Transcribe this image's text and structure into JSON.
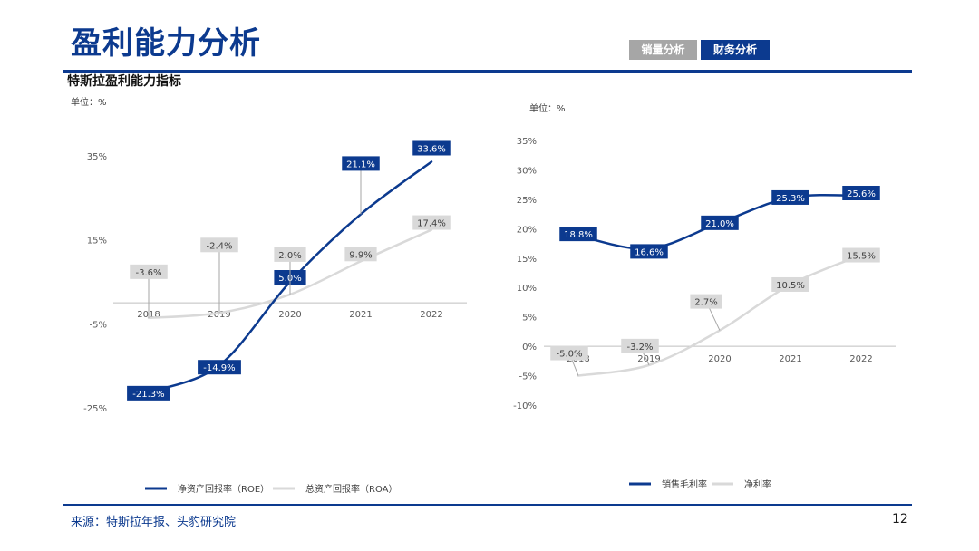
{
  "page": {
    "title": "盈利能力分析",
    "tabs": [
      "销量分析",
      "财务分析"
    ],
    "subtitle": "特斯拉盈利能力指标",
    "source": "来源：特斯拉年报、头豹研究院",
    "page_number": "12"
  },
  "chart_data": [
    {
      "type": "line",
      "unit_label": "单位：%",
      "categories": [
        "2018",
        "2019",
        "2020",
        "2021",
        "2022"
      ],
      "y_ticks": [
        35,
        15,
        -5,
        -25
      ],
      "y_tick_labels": [
        "35%",
        "15%",
        "-5%",
        "-25%"
      ],
      "ylim": [
        -25,
        35
      ],
      "series": [
        {
          "name": "净资产回报率（ROE）",
          "values": [
            -21.3,
            -14.9,
            5.0,
            21.1,
            33.6
          ],
          "labels": [
            "-21.3%",
            "-14.9%",
            "5.0%",
            "21.1%",
            "33.6%"
          ],
          "color": "#0c3a8f"
        },
        {
          "name": "总资产回报率（ROA）",
          "values": [
            -3.6,
            -2.4,
            2.0,
            9.9,
            17.4
          ],
          "labels": [
            "-3.6%",
            "-2.4%",
            "2.0%",
            "9.9%",
            "17.4%"
          ],
          "color": "#d9d9d9"
        }
      ],
      "legend_position": "bottom"
    },
    {
      "type": "line",
      "unit_label": "单位：%",
      "categories": [
        "2018",
        "2019",
        "2020",
        "2021",
        "2022"
      ],
      "y_ticks": [
        35,
        30,
        25,
        20,
        15,
        10,
        5,
        0,
        -5,
        -10
      ],
      "y_tick_labels": [
        "35%",
        "30%",
        "25%",
        "20%",
        "15%",
        "10%",
        "5%",
        "0%",
        "-5%",
        "-10%"
      ],
      "ylim": [
        -10,
        35
      ],
      "series": [
        {
          "name": "销售毛利率",
          "values": [
            18.8,
            16.6,
            21.0,
            25.3,
            25.6
          ],
          "labels": [
            "18.8%",
            "16.6%",
            "21.0%",
            "25.3%",
            "25.6%"
          ],
          "color": "#0c3a8f"
        },
        {
          "name": "净利率",
          "values": [
            -5.0,
            -3.2,
            2.7,
            10.5,
            15.5
          ],
          "labels": [
            "-5.0%",
            "-3.2%",
            "2.7%",
            "10.5%",
            "15.5%"
          ],
          "color": "#d9d9d9"
        }
      ],
      "legend_position": "bottom"
    }
  ]
}
